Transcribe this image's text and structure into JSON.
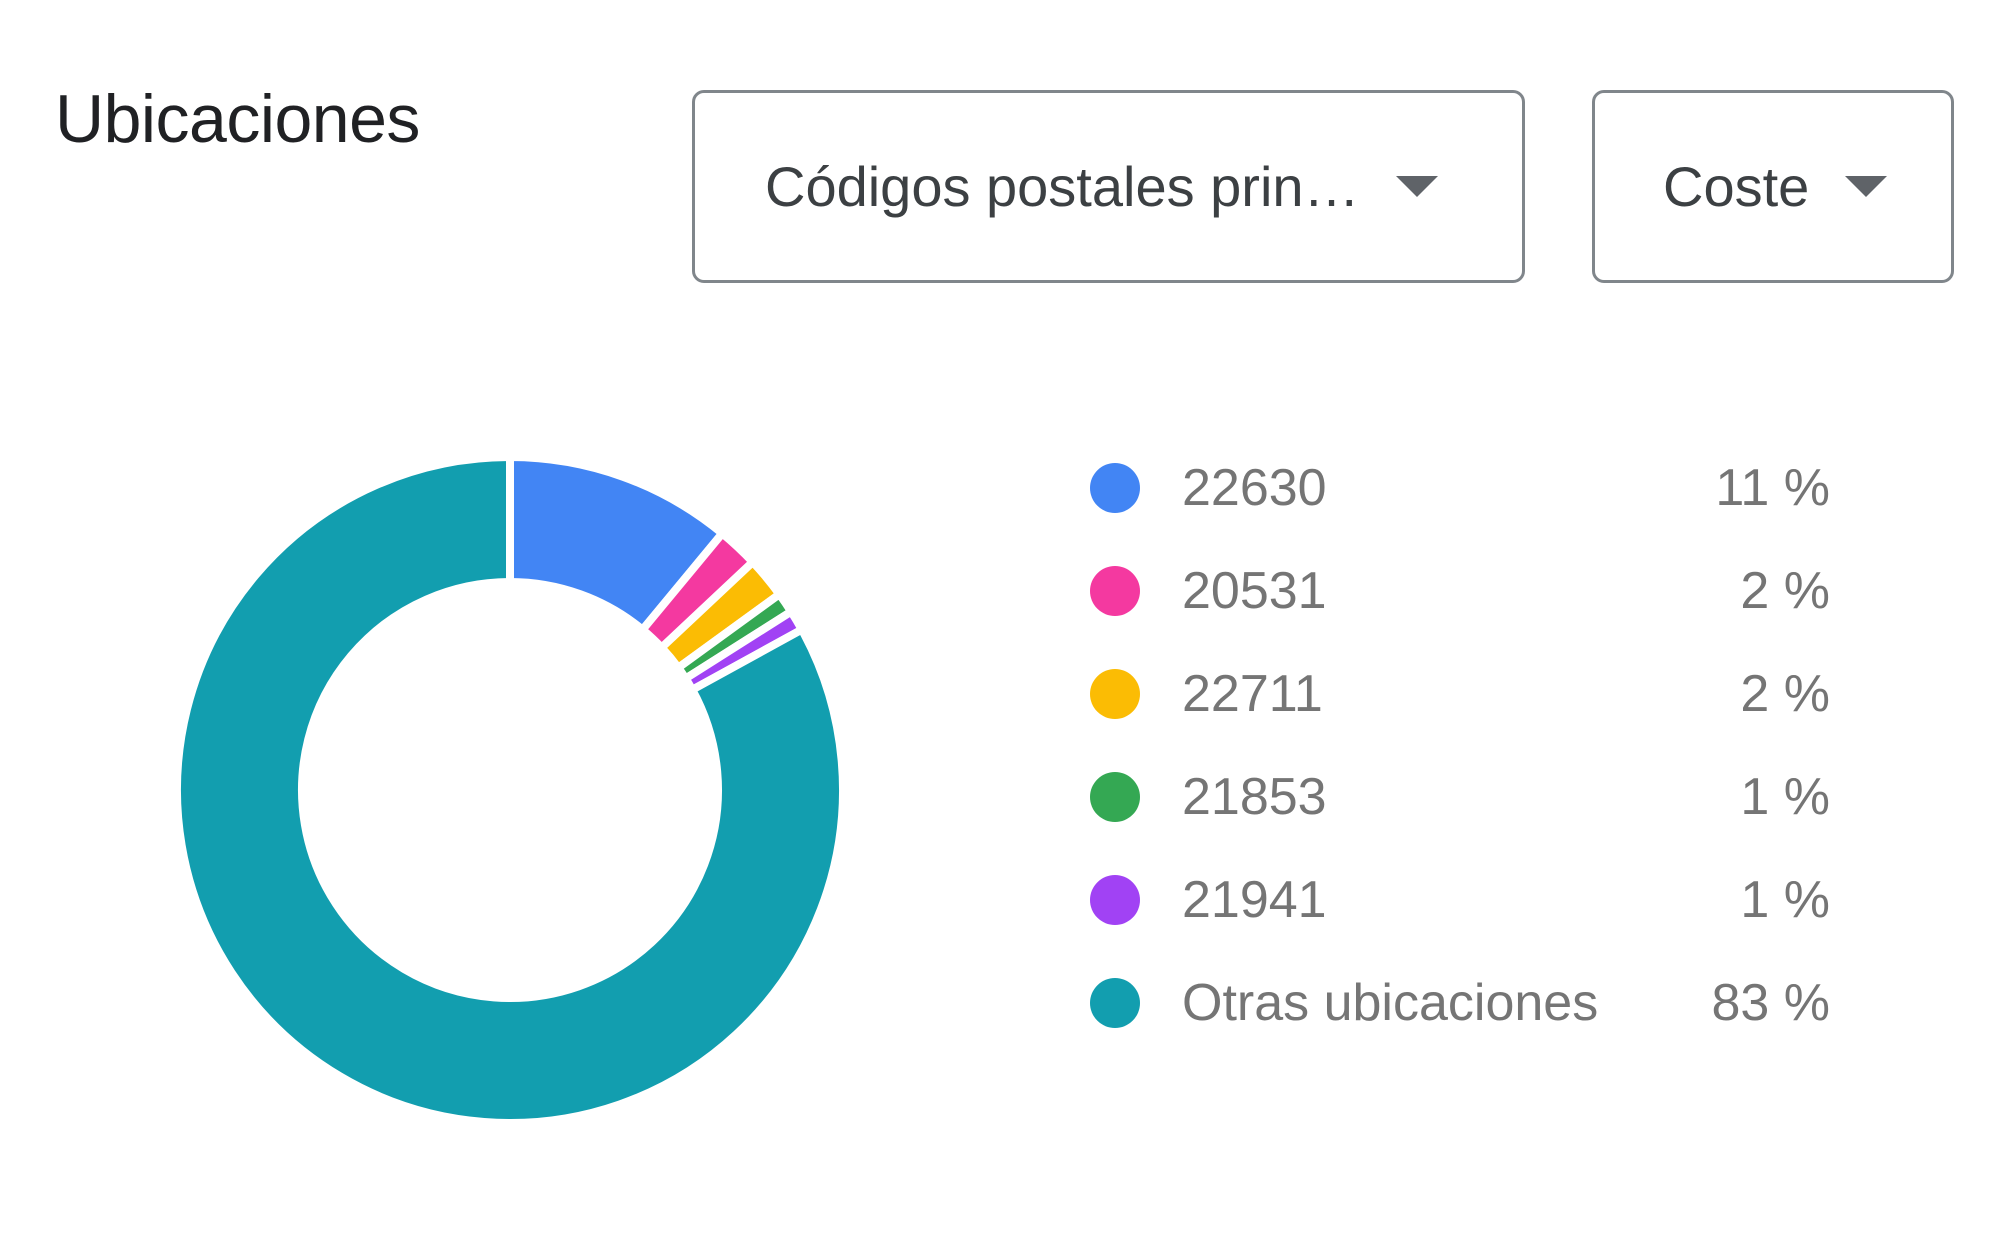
{
  "card": {
    "title": "Ubicaciones"
  },
  "controls": {
    "dimension_dropdown": {
      "selected": "Códigos postales prin…",
      "icon": "caret-down-icon"
    },
    "metric_dropdown": {
      "selected": "Coste",
      "icon": "caret-down-icon"
    }
  },
  "legend": [
    {
      "label": "22630",
      "value": "11 %",
      "color": "#4285f4"
    },
    {
      "label": "20531",
      "value": "2 %",
      "color": "#f439a0"
    },
    {
      "label": "22711",
      "value": "2 %",
      "color": "#fbbc04"
    },
    {
      "label": "21853",
      "value": "1 %",
      "color": "#34a853"
    },
    {
      "label": "21941",
      "value": "1 %",
      "color": "#a142f4"
    },
    {
      "label": "Otras ubicaciones",
      "value": "83 %",
      "color": "#129eaf"
    }
  ],
  "chart_data": {
    "type": "pie",
    "variant": "donut",
    "title": "Ubicaciones",
    "metric": "Coste",
    "dimension": "Códigos postales principales",
    "categories": [
      "22630",
      "20531",
      "22711",
      "21853",
      "21941",
      "Otras ubicaciones"
    ],
    "values": [
      11,
      2,
      2,
      1,
      1,
      83
    ],
    "unit": "%",
    "colors": [
      "#4285f4",
      "#f439a0",
      "#fbbc04",
      "#34a853",
      "#a142f4",
      "#129eaf"
    ],
    "start_angle": "12 o'clock, clockwise",
    "legend_position": "right"
  }
}
